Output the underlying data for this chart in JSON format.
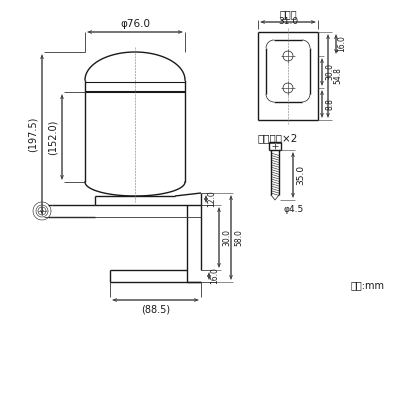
{
  "bg_color": "#ffffff",
  "line_color": "#1a1a1a",
  "dim_color": "#333333",
  "annotations": {
    "phi76": "φ76.0",
    "dim152": "(152.0)",
    "dim197": "(197.5)",
    "dim88": "(88.5)",
    "base_label": "ベース",
    "base_width": "31.0",
    "dim54": "54.8",
    "dim30": "30.0",
    "dim8_8": "8.8",
    "dim16": "16.0",
    "screw_label": "取付ビス×2",
    "dim35": "35.0",
    "phi45": "φ4.5",
    "dim58": "58.0",
    "dim30b": "30.0",
    "dim16b": "16.0",
    "dim12": "12.0",
    "unit": "単位:mm"
  }
}
